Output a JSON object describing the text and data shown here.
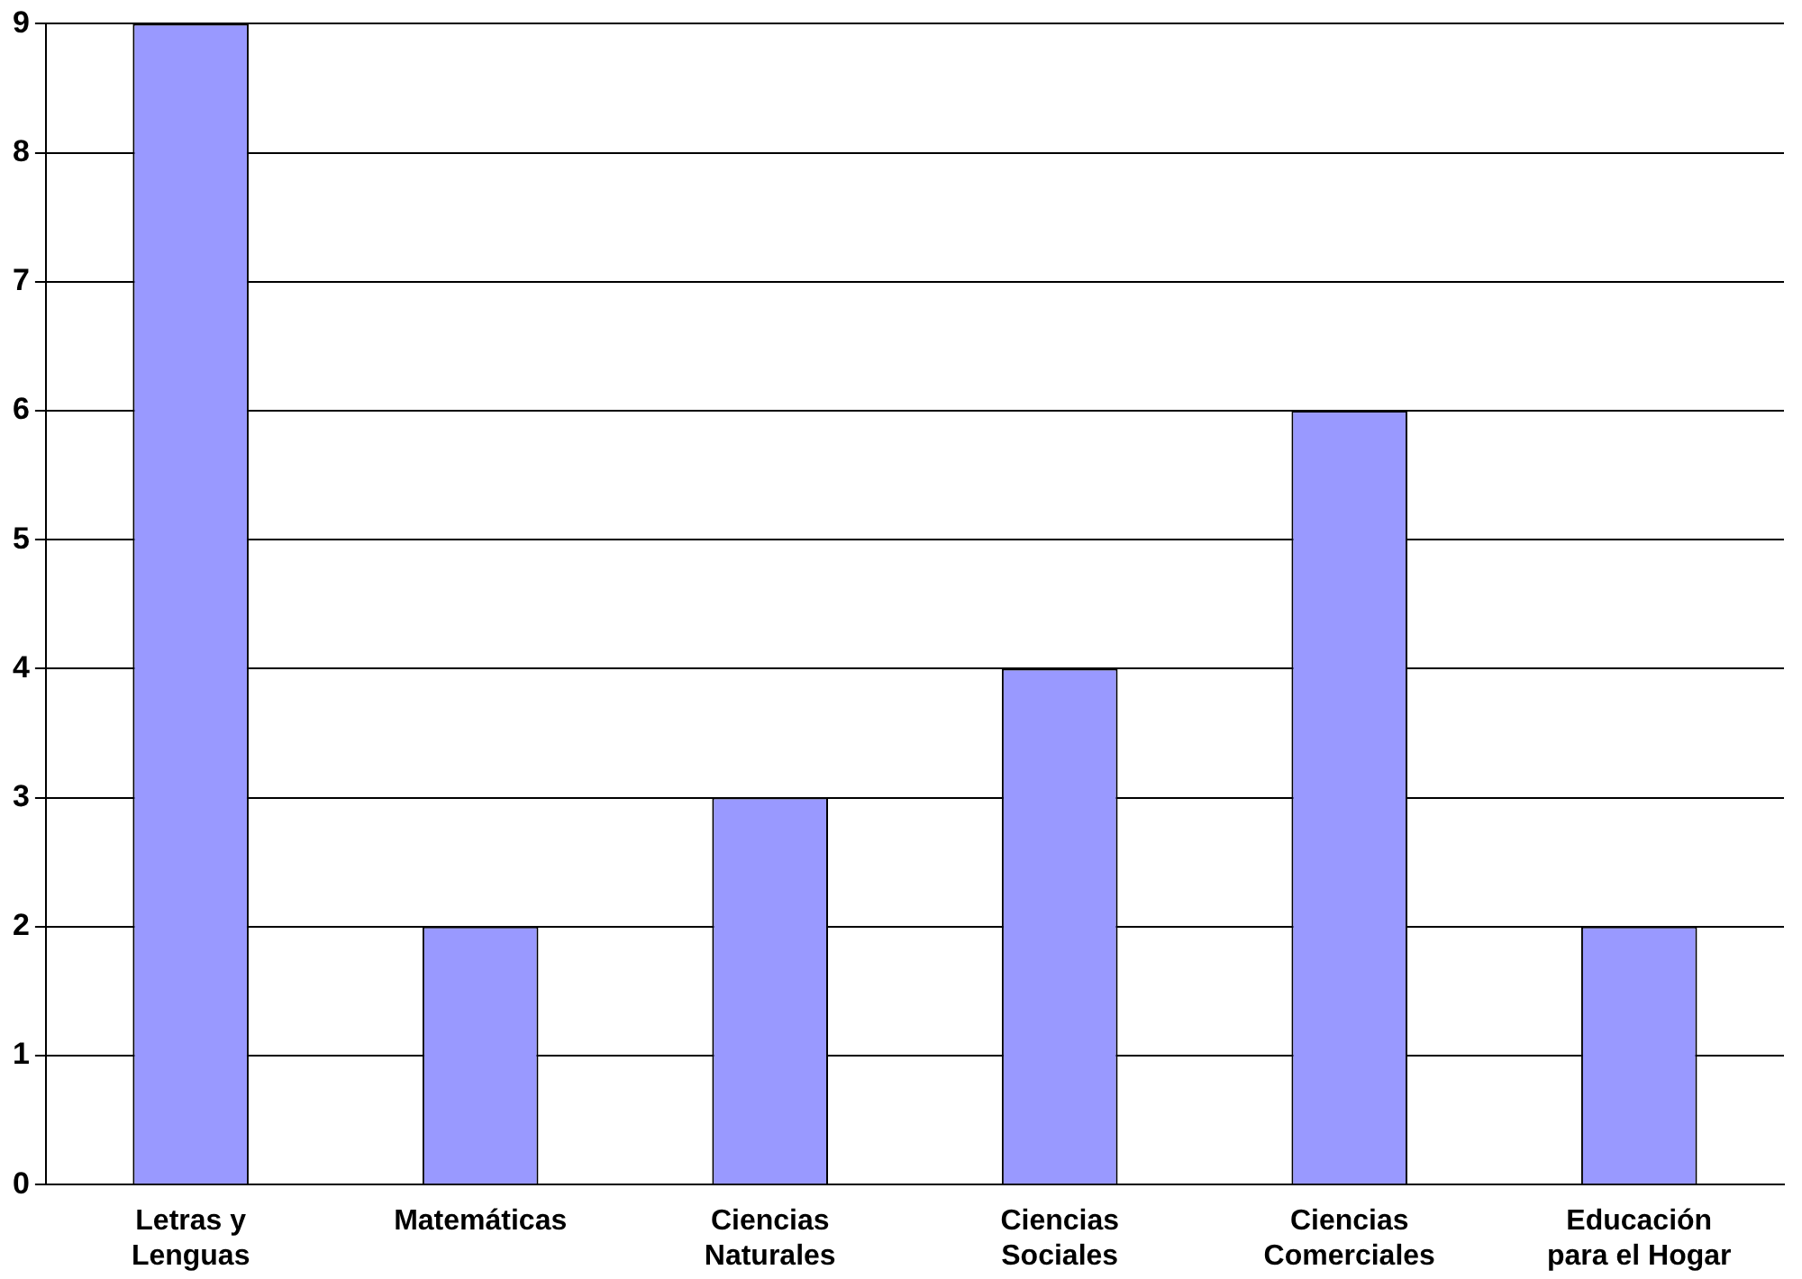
{
  "chart_data": {
    "type": "bar",
    "categories": [
      "Letras y Lenguas",
      "Matemáticas",
      "Ciencias Naturales",
      "Ciencias Sociales",
      "Ciencias Comerciales",
      "Educación para el Hogar"
    ],
    "values": [
      9,
      2,
      3,
      4,
      6,
      2
    ],
    "color": "#9999ff",
    "ylim": [
      0,
      9
    ],
    "yticks": [
      0,
      1,
      2,
      3,
      4,
      5,
      6,
      7,
      8,
      9
    ],
    "grid": "y",
    "legend": false
  }
}
